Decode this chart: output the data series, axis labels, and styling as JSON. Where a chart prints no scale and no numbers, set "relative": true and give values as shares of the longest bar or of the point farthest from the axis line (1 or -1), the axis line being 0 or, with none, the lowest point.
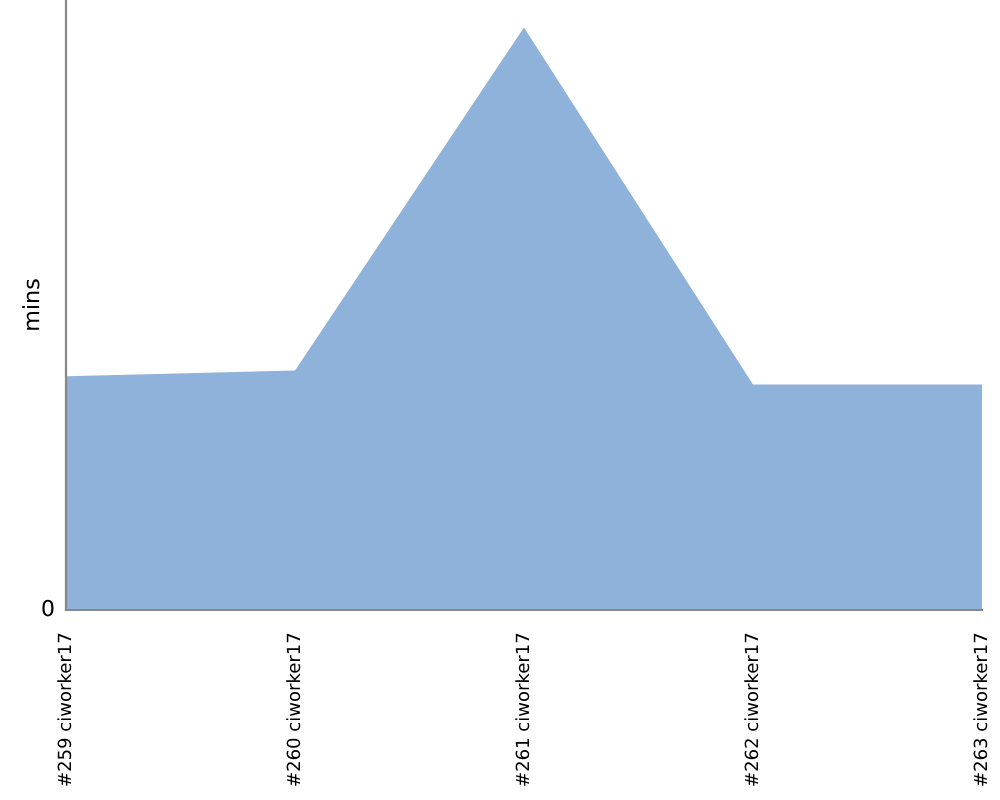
{
  "chart_data": {
    "type": "area",
    "ylabel": "mins",
    "relative": true,
    "color": "#8fb2da",
    "categories": [
      "#259 ciworker17",
      "#260 ciworker17",
      "#261 ciworker17",
      "#262 ciworker17",
      "#263 ciworker17"
    ],
    "values": [
      0.401,
      0.411,
      1,
      0.387,
      0.387
    ],
    "annotations": [
      "0"
    ],
    "grid": false,
    "legend": false
  }
}
